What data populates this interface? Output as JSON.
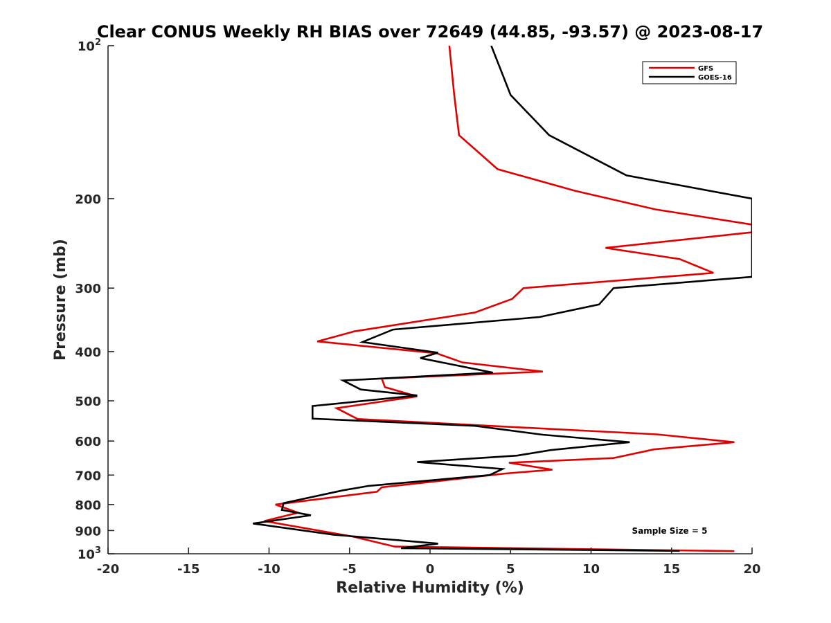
{
  "chart_data": {
    "type": "line",
    "title": "Clear CONUS Weekly RH BIAS over 72649 (44.85, -93.57) @ 2023-08-17",
    "xlabel": "Relative Humidity (%)",
    "ylabel": "Pressure (mb)",
    "xlim": [
      -20,
      20
    ],
    "ylim": [
      100,
      1000
    ],
    "y_scale": "log",
    "y_reversed": true,
    "x_ticks": [
      "-20",
      "-15",
      "-10",
      "-5",
      "0",
      "5",
      "10",
      "15",
      "20"
    ],
    "y_ticks": [
      {
        "value": 100,
        "base": "10",
        "exp": "2"
      },
      {
        "value": 200,
        "base": "200",
        "exp": ""
      },
      {
        "value": 300,
        "base": "300",
        "exp": ""
      },
      {
        "value": 400,
        "base": "400",
        "exp": ""
      },
      {
        "value": 500,
        "base": "500",
        "exp": ""
      },
      {
        "value": 600,
        "base": "600",
        "exp": ""
      },
      {
        "value": 700,
        "base": "700",
        "exp": ""
      },
      {
        "value": 800,
        "base": "800",
        "exp": ""
      },
      {
        "value": 900,
        "base": "900",
        "exp": ""
      },
      {
        "value": 1000,
        "base": "10",
        "exp": "3"
      }
    ],
    "grid": false,
    "legend_position": "top-right",
    "annotation": "Sample Size = 5",
    "series": [
      {
        "name": "GFS",
        "color": "#e00000",
        "points": [
          [
            1.2,
            100
          ],
          [
            1.5,
            125
          ],
          [
            1.8,
            150
          ],
          [
            4.2,
            175
          ],
          [
            9.0,
            193
          ],
          [
            14.0,
            210
          ],
          [
            20.0,
            225
          ],
          [
            20.0,
            233
          ],
          [
            10.9,
            250
          ],
          [
            15.5,
            263
          ],
          [
            17.6,
            280
          ],
          [
            5.8,
            300
          ],
          [
            5.1,
            315
          ],
          [
            2.8,
            335
          ],
          [
            -4.7,
            365
          ],
          [
            -7.0,
            382
          ],
          [
            0.4,
            403
          ],
          [
            2.0,
            420
          ],
          [
            7.0,
            438
          ],
          [
            -3.0,
            452
          ],
          [
            -2.8,
            470
          ],
          [
            -0.8,
            490
          ],
          [
            -5.8,
            517
          ],
          [
            -4.5,
            543
          ],
          [
            7.5,
            568
          ],
          [
            14.1,
            582
          ],
          [
            18.9,
            603
          ],
          [
            13.9,
            623
          ],
          [
            11.4,
            648
          ],
          [
            4.9,
            662
          ],
          [
            7.6,
            683
          ],
          [
            4.7,
            695
          ],
          [
            -3.0,
            740
          ],
          [
            -3.3,
            755
          ],
          [
            -9.6,
            800
          ],
          [
            -8.2,
            830
          ],
          [
            -10.3,
            862
          ],
          [
            -4.8,
            925
          ],
          [
            -2.2,
            968
          ],
          [
            18.9,
            988
          ]
        ]
      },
      {
        "name": "GOES-16",
        "color": "#000000",
        "points": [
          [
            3.8,
            100
          ],
          [
            5.0,
            125
          ],
          [
            7.4,
            150
          ],
          [
            12.2,
            180
          ],
          [
            20.0,
            200
          ],
          [
            20.0,
            285
          ],
          [
            11.4,
            300
          ],
          [
            10.5,
            323
          ],
          [
            6.8,
            342
          ],
          [
            -2.3,
            362
          ],
          [
            -4.2,
            383
          ],
          [
            0.5,
            402
          ],
          [
            -0.6,
            412
          ],
          [
            3.9,
            440
          ],
          [
            -5.4,
            456
          ],
          [
            -4.3,
            475
          ],
          [
            -0.8,
            488
          ],
          [
            -7.3,
            512
          ],
          [
            -7.3,
            542
          ],
          [
            2.8,
            560
          ],
          [
            7.0,
            583
          ],
          [
            12.4,
            603
          ],
          [
            7.5,
            625
          ],
          [
            5.4,
            641
          ],
          [
            -0.8,
            660
          ],
          [
            4.5,
            681
          ],
          [
            3.7,
            700
          ],
          [
            -3.8,
            735
          ],
          [
            -5.4,
            750
          ],
          [
            -9.1,
            795
          ],
          [
            -9.2,
            820
          ],
          [
            -7.4,
            840
          ],
          [
            -11.0,
            872
          ],
          [
            -6.0,
            917
          ],
          [
            0.5,
            955
          ],
          [
            -1.8,
            975
          ],
          [
            15.5,
            987
          ]
        ]
      }
    ]
  }
}
